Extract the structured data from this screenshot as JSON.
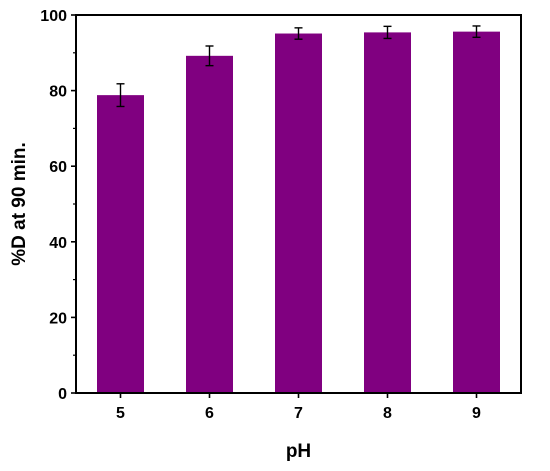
{
  "chart_data": {
    "type": "bar",
    "title": "",
    "xlabel": "pH",
    "ylabel": "%D at 90 min.",
    "categories": [
      "5",
      "6",
      "7",
      "8",
      "9"
    ],
    "series": [
      {
        "values": [
          78.8,
          89.2,
          95.1,
          95.4,
          95.6
        ],
        "errors": [
          3.0,
          2.6,
          1.5,
          1.6,
          1.5
        ]
      }
    ],
    "ylim": [
      0,
      100
    ],
    "yticks": [
      "0",
      "20",
      "40",
      "60",
      "80",
      "100"
    ],
    "bar_color": "#800080",
    "grid": false,
    "error_bars": true
  }
}
